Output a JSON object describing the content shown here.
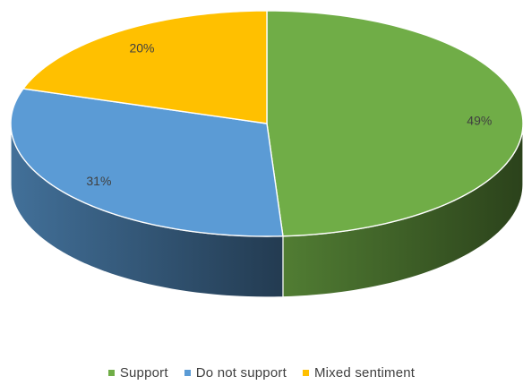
{
  "chart_data": {
    "type": "pie",
    "style": "3d",
    "categories": [
      "Support",
      "Do not support",
      "Mixed sentiment"
    ],
    "values": [
      49,
      31,
      20
    ],
    "labels": [
      "49%",
      "31%",
      "20%"
    ],
    "colors": [
      "#70ad47",
      "#5b9bd5",
      "#ffc000"
    ],
    "legend_position": "bottom"
  }
}
